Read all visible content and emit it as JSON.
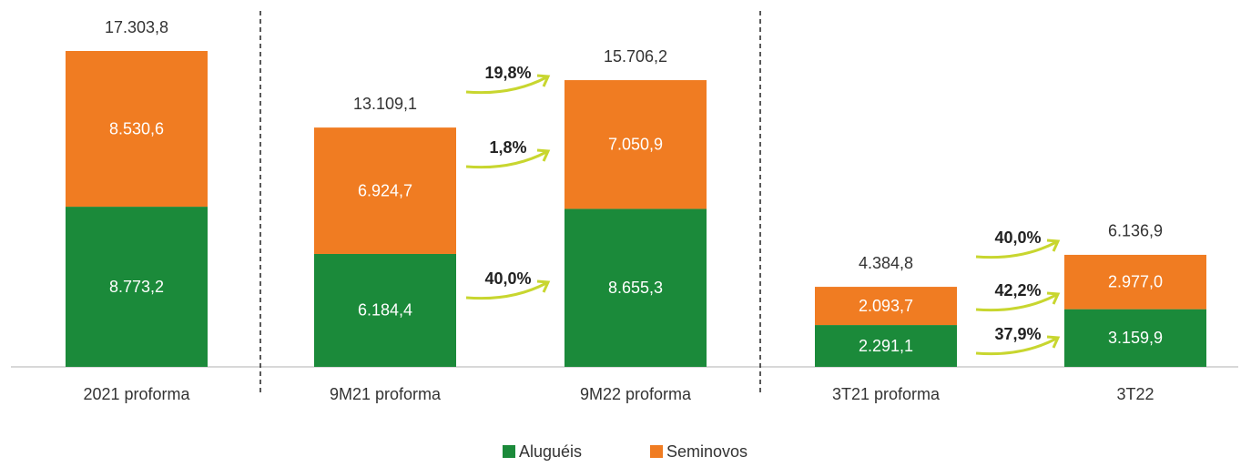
{
  "chart_data": {
    "type": "stacked_bar",
    "categories": [
      "2021 proforma",
      "9M21 proforma",
      "9M22 proforma",
      "3T21 proforma",
      "3T22"
    ],
    "series": [
      {
        "name": "Aluguéis",
        "color": "#1b8a3a",
        "values": [
          8773.2,
          6184.4,
          8655.3,
          2291.1,
          3159.9
        ],
        "value_labels": [
          "8.773,2",
          "6.184,4",
          "8.655,3",
          "2.291,1",
          "3.159,9"
        ]
      },
      {
        "name": "Seminovos",
        "color": "#f07c22",
        "values": [
          8530.6,
          6924.7,
          7050.9,
          2093.7,
          2977.0
        ],
        "value_labels": [
          "8.530,6",
          "6.924,7",
          "7.050,9",
          "2.093,7",
          "2.977,0"
        ]
      }
    ],
    "totals": [
      17303.8,
      13109.1,
      15706.2,
      4384.8,
      6136.9
    ],
    "total_labels": [
      "17.303,8",
      "13.109,1",
      "15.706,2",
      "4.384,8",
      "6.136,9"
    ],
    "annotations": [
      {
        "label": "19,8%",
        "value": 19.8
      },
      {
        "label": "1,8%",
        "value": 1.8
      },
      {
        "label": "40,0%",
        "value": 40.0
      },
      {
        "label": "40,0%",
        "value": 40.0
      },
      {
        "label": "42,2%",
        "value": 42.2
      },
      {
        "label": "37,9%",
        "value": 37.9
      }
    ],
    "legend": "bottom"
  }
}
